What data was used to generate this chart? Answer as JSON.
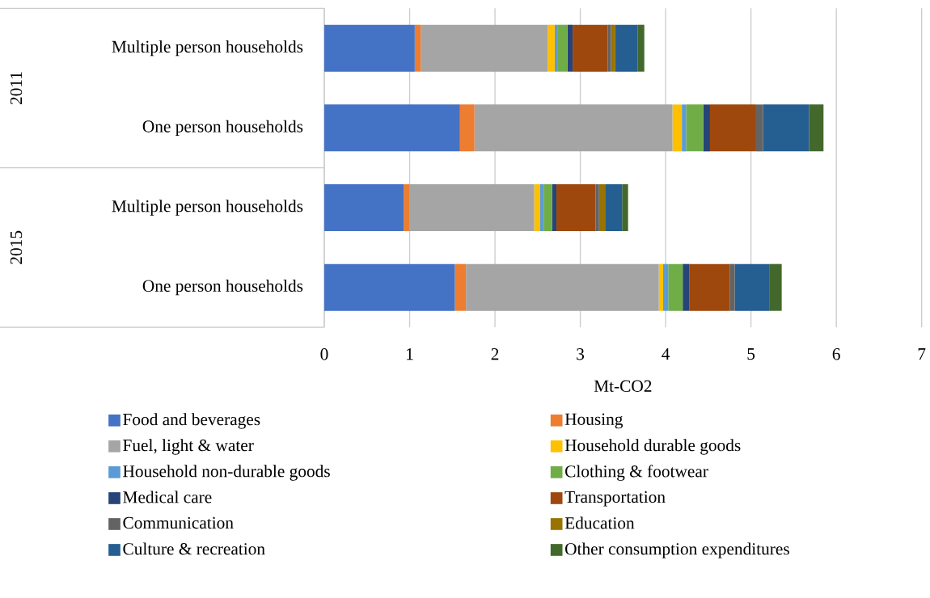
{
  "chart_data": {
    "type": "bar",
    "orientation": "horizontal",
    "stacked": true,
    "categories": [
      "Multiple person households",
      "One person households",
      "Multiple person households",
      "One person households"
    ],
    "annotations": [
      "2011",
      "2015"
    ],
    "xlabel": "Mt-CO2",
    "xlim": [
      0,
      7
    ],
    "xticks": [
      0,
      1,
      2,
      3,
      4,
      5,
      6,
      7
    ],
    "grid": "x",
    "legend": "bottom",
    "series": [
      {
        "name": "Food and beverages",
        "color": "#4472c4",
        "values": [
          1.06,
          1.59,
          0.93,
          1.53
        ]
      },
      {
        "name": "Housing",
        "color": "#ed7d31",
        "values": [
          0.07,
          0.17,
          0.07,
          0.13
        ]
      },
      {
        "name": "Fuel, light & water",
        "color": "#a5a5a5",
        "values": [
          1.49,
          2.32,
          1.46,
          2.26
        ]
      },
      {
        "name": "Household durable goods",
        "color": "#ffc000",
        "values": [
          0.08,
          0.11,
          0.07,
          0.05
        ]
      },
      {
        "name": "Household non-durable goods",
        "color": "#5b9bd5",
        "values": [
          0.03,
          0.05,
          0.04,
          0.06
        ]
      },
      {
        "name": "Clothing & footwear",
        "color": "#70ad47",
        "values": [
          0.12,
          0.2,
          0.1,
          0.17
        ]
      },
      {
        "name": "Medical care",
        "color": "#264478",
        "values": [
          0.06,
          0.08,
          0.05,
          0.08
        ]
      },
      {
        "name": "Transportation",
        "color": "#9e480e",
        "values": [
          0.41,
          0.54,
          0.46,
          0.47
        ]
      },
      {
        "name": "Communication",
        "color": "#636363",
        "values": [
          0.04,
          0.08,
          0.04,
          0.06
        ]
      },
      {
        "name": "Education",
        "color": "#997300",
        "values": [
          0.05,
          0,
          0.07,
          0
        ]
      },
      {
        "name": "Culture & recreation",
        "color": "#255e91",
        "values": [
          0.26,
          0.54,
          0.2,
          0.41
        ]
      },
      {
        "name": "Other consumption expenditures",
        "color": "#43682b",
        "values": [
          0.08,
          0.17,
          0.07,
          0.14
        ]
      }
    ]
  }
}
